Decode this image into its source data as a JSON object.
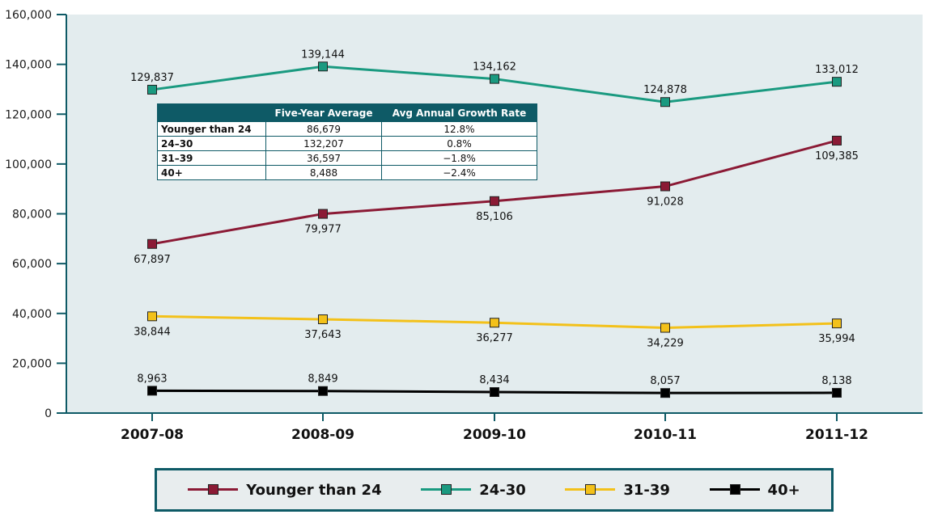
{
  "chart_data": {
    "type": "line",
    "categories": [
      "2007-08",
      "2008-09",
      "2009-10",
      "2010-11",
      "2011-12"
    ],
    "ylim": [
      0,
      160000
    ],
    "yticks": [
      0,
      20000,
      40000,
      60000,
      80000,
      100000,
      120000,
      140000,
      160000
    ],
    "ytick_labels": [
      "0",
      "20,000",
      "40,000",
      "60,000",
      "80,000",
      "100,000",
      "120,000",
      "140,000",
      "160,000"
    ],
    "series": [
      {
        "name": "Younger than 24",
        "color": "#8b1a35",
        "values": [
          67897,
          79977,
          85106,
          91028,
          109385
        ],
        "labels": [
          "67,897",
          "79,977",
          "85,106",
          "91,028",
          "109,385"
        ],
        "label_positions": [
          "below",
          "below",
          "below",
          "below",
          "below"
        ]
      },
      {
        "name": "24-30",
        "color": "#1a9a80",
        "values": [
          129837,
          139144,
          134162,
          124878,
          133012
        ],
        "labels": [
          "129,837",
          "139,144",
          "134,162",
          "124,878",
          "133,012"
        ],
        "label_positions": [
          "above",
          "above",
          "above",
          "above",
          "above"
        ]
      },
      {
        "name": "31-39",
        "color": "#f3c11a",
        "values": [
          38844,
          37643,
          36277,
          34229,
          35994
        ],
        "labels": [
          "38,844",
          "37,643",
          "36,277",
          "34,229",
          "35,994"
        ],
        "label_positions": [
          "below",
          "below",
          "below",
          "below",
          "below"
        ]
      },
      {
        "name": "40+",
        "color": "#000000",
        "values": [
          8963,
          8849,
          8434,
          8057,
          8138
        ],
        "labels": [
          "8,963",
          "8,849",
          "8,434",
          "8,057",
          "8,138"
        ],
        "label_positions": [
          "above",
          "above",
          "above",
          "above",
          "above"
        ]
      }
    ],
    "plot_background": "#e3ecee",
    "axis_color": "#0e5a66",
    "grid": false,
    "legend_position": "bottom"
  },
  "table": {
    "headers": [
      "",
      "Five-Year Average",
      "Avg Annual Growth Rate"
    ],
    "rows": [
      {
        "group": "Younger than 24",
        "average": "86,679",
        "growth": "12.8%"
      },
      {
        "group": "24–30",
        "average": "132,207",
        "growth": "0.8%"
      },
      {
        "group": "31–39",
        "average": "36,597",
        "growth": "−1.8%"
      },
      {
        "group": "40+",
        "average": "8,488",
        "growth": "−2.4%"
      }
    ]
  },
  "legend": {
    "items": [
      {
        "label": "Younger than 24",
        "color": "#8b1a35"
      },
      {
        "label": "24-30",
        "color": "#1a9a80"
      },
      {
        "label": "31-39",
        "color": "#f3c11a"
      },
      {
        "label": "40+",
        "color": "#000000"
      }
    ]
  }
}
